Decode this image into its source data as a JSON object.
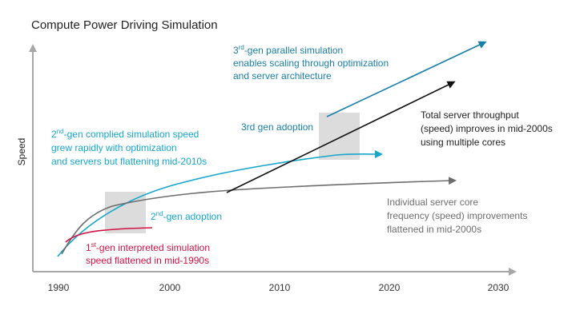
{
  "title": "Compute Power Driving Simulation",
  "y_axis_label": "Speed",
  "x_ticks": [
    "1990",
    "2000",
    "2010",
    "2020",
    "2030"
  ],
  "annotations": {
    "third_gen_parallel": {
      "lines": [
        {
          "pre": "3",
          "sup": "rd",
          "post": "-gen parallel simulation"
        },
        {
          "pre": "enables scaling through optimization",
          "sup": "",
          "post": ""
        },
        {
          "pre": "and server architecture",
          "sup": "",
          "post": ""
        }
      ]
    },
    "third_gen_adoption": "3rd gen adoption",
    "second_gen_compiled": {
      "lines": [
        {
          "pre": "2",
          "sup": "nd",
          "post": "-gen complied simulation speed"
        },
        {
          "pre": "grew rapidly with optimization",
          "sup": "",
          "post": ""
        },
        {
          "pre": "and servers but flattening mid-2010s",
          "sup": "",
          "post": ""
        }
      ]
    },
    "total_throughput": {
      "lines": [
        {
          "pre": "Total server throughput",
          "sup": "",
          "post": ""
        },
        {
          "pre": "(speed) improves in mid-2000s",
          "sup": "",
          "post": ""
        },
        {
          "pre": "using multiple cores",
          "sup": "",
          "post": ""
        }
      ]
    },
    "second_gen_adoption": {
      "pre": "2",
      "sup": "nd",
      "post": "-gen adoption"
    },
    "individual_core": {
      "lines": [
        {
          "pre": "Individual server core",
          "sup": "",
          "post": ""
        },
        {
          "pre": "frequency (speed) improvements",
          "sup": "",
          "post": ""
        },
        {
          "pre": "flattened in mid-2000s",
          "sup": "",
          "post": ""
        }
      ]
    },
    "first_gen": {
      "lines": [
        {
          "pre": "1",
          "sup": "st",
          "post": "-gen interpreted simulation"
        },
        {
          "pre": "speed flattened in mid-1990s",
          "sup": "",
          "post": ""
        }
      ]
    }
  },
  "colors": {
    "first_gen": "#d11143",
    "second_gen": "#16a6cc",
    "third_gen": "#1a7fa8",
    "total_throughput": "#111111",
    "individual_core": "#6d6d6d",
    "axis": "#a7a7a7",
    "adoption_box": "#dcdcdc"
  }
}
